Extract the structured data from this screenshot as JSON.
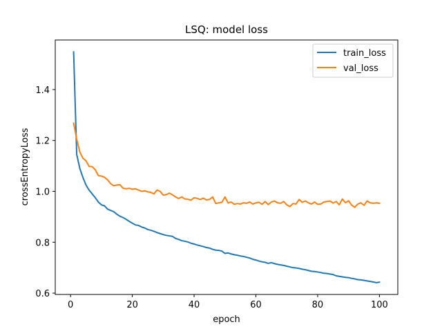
{
  "chart_data": {
    "type": "line",
    "title": "LSQ: model loss",
    "xlabel": "epoch",
    "ylabel": "crossEntropyLoss",
    "xlim": [
      -4.95,
      105.95
    ],
    "ylim": [
      0.5948,
      1.5948
    ],
    "xticks": [
      0,
      20,
      40,
      60,
      80,
      100
    ],
    "yticks": [
      0.6,
      0.8,
      1.0,
      1.2,
      1.4
    ],
    "ytick_labels": [
      "0.6",
      "0.8",
      "1.0",
      "1.2",
      "1.4"
    ],
    "grid": false,
    "legend_position": "top-right",
    "series": [
      {
        "name": "train_loss",
        "color": "#1f77b4",
        "x": [
          1,
          2,
          3,
          4,
          5,
          6,
          7,
          8,
          9,
          10,
          11,
          12,
          13,
          14,
          15,
          16,
          17,
          18,
          19,
          20,
          21,
          22,
          23,
          24,
          25,
          26,
          27,
          28,
          29,
          30,
          31,
          32,
          33,
          34,
          35,
          36,
          37,
          38,
          39,
          40,
          41,
          42,
          43,
          44,
          45,
          46,
          47,
          48,
          49,
          50,
          51,
          52,
          53,
          54,
          55,
          56,
          57,
          58,
          59,
          60,
          61,
          62,
          63,
          64,
          65,
          66,
          67,
          68,
          69,
          70,
          71,
          72,
          73,
          74,
          75,
          76,
          77,
          78,
          79,
          80,
          81,
          82,
          83,
          84,
          85,
          86,
          87,
          88,
          89,
          90,
          91,
          92,
          93,
          94,
          95,
          96,
          97,
          98,
          99,
          100
        ],
        "values": [
          1.548,
          1.145,
          1.09,
          1.055,
          1.025,
          1.005,
          0.99,
          0.975,
          0.958,
          0.947,
          0.943,
          0.93,
          0.925,
          0.92,
          0.91,
          0.902,
          0.897,
          0.89,
          0.882,
          0.875,
          0.868,
          0.866,
          0.86,
          0.856,
          0.85,
          0.847,
          0.843,
          0.838,
          0.834,
          0.83,
          0.827,
          0.825,
          0.823,
          0.815,
          0.811,
          0.806,
          0.804,
          0.801,
          0.796,
          0.793,
          0.789,
          0.786,
          0.783,
          0.779,
          0.777,
          0.772,
          0.769,
          0.768,
          0.765,
          0.756,
          0.758,
          0.754,
          0.751,
          0.749,
          0.746,
          0.744,
          0.741,
          0.738,
          0.733,
          0.73,
          0.726,
          0.723,
          0.721,
          0.717,
          0.72,
          0.716,
          0.713,
          0.711,
          0.709,
          0.706,
          0.703,
          0.7,
          0.699,
          0.697,
          0.694,
          0.692,
          0.689,
          0.686,
          0.685,
          0.683,
          0.681,
          0.678,
          0.677,
          0.675,
          0.673,
          0.668,
          0.666,
          0.664,
          0.662,
          0.661,
          0.658,
          0.656,
          0.653,
          0.652,
          0.65,
          0.648,
          0.646,
          0.644,
          0.641,
          0.643
        ]
      },
      {
        "name": "val_loss",
        "color": "#ff7f0e",
        "x": [
          1,
          2,
          3,
          4,
          5,
          6,
          7,
          8,
          9,
          10,
          11,
          12,
          13,
          14,
          15,
          16,
          17,
          18,
          19,
          20,
          21,
          22,
          23,
          24,
          25,
          26,
          27,
          28,
          29,
          30,
          31,
          32,
          33,
          34,
          35,
          36,
          37,
          38,
          39,
          40,
          41,
          42,
          43,
          44,
          45,
          46,
          47,
          48,
          49,
          50,
          51,
          52,
          53,
          54,
          55,
          56,
          57,
          58,
          59,
          60,
          61,
          62,
          63,
          64,
          65,
          66,
          67,
          68,
          69,
          70,
          71,
          72,
          73,
          74,
          75,
          76,
          77,
          78,
          79,
          80,
          81,
          82,
          83,
          84,
          85,
          86,
          87,
          88,
          89,
          90,
          91,
          92,
          93,
          94,
          95,
          96,
          97,
          98,
          99,
          100
        ],
        "values": [
          1.268,
          1.205,
          1.155,
          1.13,
          1.12,
          1.098,
          1.097,
          1.085,
          1.062,
          1.06,
          1.055,
          1.045,
          1.03,
          1.022,
          1.025,
          1.026,
          1.012,
          1.01,
          1.012,
          1.008,
          1.01,
          1.005,
          1.0,
          1.002,
          0.998,
          0.996,
          0.99,
          1.005,
          1.0,
          0.985,
          0.987,
          0.993,
          0.986,
          0.978,
          0.972,
          0.978,
          0.97,
          0.969,
          0.965,
          0.975,
          0.972,
          0.968,
          0.973,
          0.966,
          0.968,
          0.978,
          0.952,
          0.955,
          0.957,
          0.978,
          0.954,
          0.958,
          0.949,
          0.952,
          0.95,
          0.955,
          0.953,
          0.958,
          0.95,
          0.955,
          0.957,
          0.949,
          0.96,
          0.948,
          0.958,
          0.962,
          0.955,
          0.953,
          0.96,
          0.947,
          0.94,
          0.952,
          0.95,
          0.968,
          0.957,
          0.962,
          0.955,
          0.95,
          0.958,
          0.949,
          0.95,
          0.958,
          0.96,
          0.962,
          0.954,
          0.96,
          0.947,
          0.97,
          0.955,
          0.963,
          0.946,
          0.937,
          0.95,
          0.955,
          0.945,
          0.962,
          0.955,
          0.953,
          0.955,
          0.953
        ]
      }
    ]
  }
}
